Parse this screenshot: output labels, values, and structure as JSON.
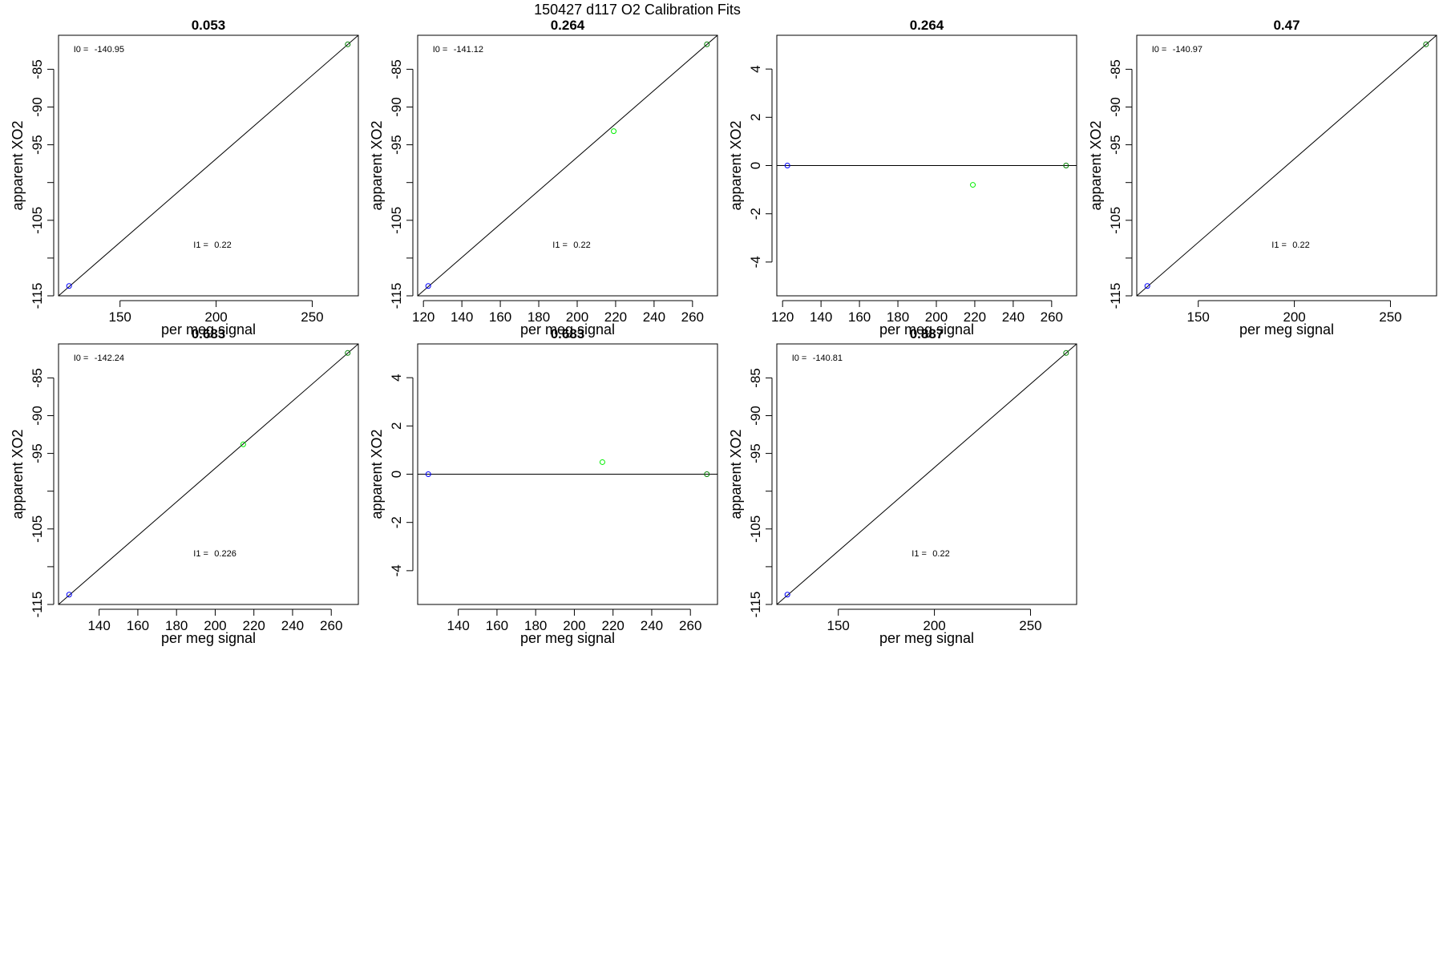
{
  "figure": {
    "title": "150427   d117   O2 Calibration Fits"
  },
  "chart_data": [
    {
      "type": "scatter",
      "title": "0.053",
      "xlabel": "per meg signal",
      "ylabel": "apparent XO2",
      "xlim": [
        118,
        274
      ],
      "ylim": [
        -115,
        -80.5
      ],
      "xticks": [
        150,
        200,
        250
      ],
      "yticks": [
        -115,
        -110,
        -105,
        -100,
        -95,
        -90,
        -85
      ],
      "ytick_labels": [
        "-115",
        "",
        "-105",
        "",
        "-95",
        "-90",
        "-85"
      ],
      "annotations": [
        {
          "label": "I0 =",
          "value": "-140.95",
          "ax": 0.05,
          "ay": 0.935
        },
        {
          "label": "I1 =",
          "value": "0.22",
          "ax": 0.45,
          "ay": 0.185
        }
      ],
      "line": {
        "x": [
          118,
          274
        ],
        "y": [
          -115,
          -80.5
        ]
      },
      "points": [
        {
          "x": 123.5,
          "y": -113.7,
          "color": "#0000ff"
        },
        {
          "x": 268.5,
          "y": -81.7,
          "color": "#008000"
        }
      ],
      "colors": {
        "low": "#0000ff",
        "mid": "#00ee00",
        "high": "#008000"
      }
    },
    {
      "type": "scatter",
      "title": "0.264",
      "xlabel": "per meg signal",
      "ylabel": "apparent XO2",
      "xlim": [
        117,
        273
      ],
      "ylim": [
        -115,
        -80.5
      ],
      "xticks": [
        120,
        140,
        160,
        180,
        200,
        220,
        240,
        260
      ],
      "yticks": [
        -115,
        -110,
        -105,
        -100,
        -95,
        -90,
        -85
      ],
      "ytick_labels": [
        "-115",
        "",
        "-105",
        "",
        "-95",
        "-90",
        "-85"
      ],
      "annotations": [
        {
          "label": "I0 =",
          "value": "-141.12",
          "ax": 0.05,
          "ay": 0.935
        },
        {
          "label": "I1 =",
          "value": "0.22",
          "ax": 0.45,
          "ay": 0.185
        }
      ],
      "line": {
        "x": [
          117,
          273
        ],
        "y": [
          -115,
          -80.5
        ]
      },
      "points": [
        {
          "x": 122.5,
          "y": -113.7,
          "color": "#0000ff"
        },
        {
          "x": 219,
          "y": -93.2,
          "color": "#00ee00"
        },
        {
          "x": 267.5,
          "y": -81.7,
          "color": "#008000"
        }
      ]
    },
    {
      "type": "scatter",
      "title": "0.264",
      "xlabel": "per meg signal",
      "ylabel": "apparent XO2",
      "xlim": [
        117,
        273
      ],
      "ylim": [
        -5.4,
        5.4
      ],
      "xticks": [
        120,
        140,
        160,
        180,
        200,
        220,
        240,
        260
      ],
      "yticks": [
        -4,
        -2,
        0,
        2,
        4
      ],
      "ytick_labels": [
        "-4",
        "-2",
        "0",
        "2",
        "4"
      ],
      "annotations": [],
      "line": {
        "x": [
          117,
          273
        ],
        "y": [
          0,
          0
        ]
      },
      "points": [
        {
          "x": 122.5,
          "y": 0,
          "color": "#0000ff"
        },
        {
          "x": 219,
          "y": -0.8,
          "color": "#00ee00"
        },
        {
          "x": 267.5,
          "y": 0,
          "color": "#008000"
        }
      ]
    },
    {
      "type": "scatter",
      "title": "0.47",
      "xlabel": "per meg signal",
      "ylabel": "apparent XO2",
      "xlim": [
        118,
        274
      ],
      "ylim": [
        -115,
        -80.5
      ],
      "xticks": [
        150,
        200,
        250
      ],
      "yticks": [
        -115,
        -110,
        -105,
        -100,
        -95,
        -90,
        -85
      ],
      "ytick_labels": [
        "-115",
        "",
        "-105",
        "",
        "-95",
        "-90",
        "-85"
      ],
      "annotations": [
        {
          "label": "I0 =",
          "value": "-140.97",
          "ax": 0.05,
          "ay": 0.935
        },
        {
          "label": "I1 =",
          "value": "0.22",
          "ax": 0.45,
          "ay": 0.185
        }
      ],
      "line": {
        "x": [
          118,
          274
        ],
        "y": [
          -115,
          -80.5
        ]
      },
      "points": [
        {
          "x": 123.5,
          "y": -113.7,
          "color": "#0000ff"
        },
        {
          "x": 268.5,
          "y": -81.7,
          "color": "#008000"
        }
      ]
    },
    {
      "type": "scatter",
      "title": "0.683",
      "xlabel": "per meg signal",
      "ylabel": "apparent XO2",
      "xlim": [
        119,
        274
      ],
      "ylim": [
        -115,
        -80.5
      ],
      "xticks": [
        140,
        160,
        180,
        200,
        220,
        240,
        260
      ],
      "yticks": [
        -115,
        -110,
        -105,
        -100,
        -95,
        -90,
        -85
      ],
      "ytick_labels": [
        "-115",
        "",
        "-105",
        "",
        "-95",
        "-90",
        "-85"
      ],
      "annotations": [
        {
          "label": "I0 =",
          "value": "-142.24",
          "ax": 0.05,
          "ay": 0.935
        },
        {
          "label": "I1 =",
          "value": "0.226",
          "ax": 0.45,
          "ay": 0.185
        }
      ],
      "line": {
        "x": [
          119,
          274
        ],
        "y": [
          -115,
          -80.5
        ]
      },
      "points": [
        {
          "x": 124.5,
          "y": -113.7,
          "color": "#0000ff"
        },
        {
          "x": 214.5,
          "y": -93.8,
          "color": "#00ee00"
        },
        {
          "x": 268.5,
          "y": -81.7,
          "color": "#008000"
        }
      ]
    },
    {
      "type": "scatter",
      "title": "0.683",
      "xlabel": "per meg signal",
      "ylabel": "apparent XO2",
      "xlim": [
        119,
        274
      ],
      "ylim": [
        -5.4,
        5.4
      ],
      "xticks": [
        140,
        160,
        180,
        200,
        220,
        240,
        260
      ],
      "yticks": [
        -4,
        -2,
        0,
        2,
        4
      ],
      "ytick_labels": [
        "-4",
        "-2",
        "0",
        "2",
        "4"
      ],
      "annotations": [],
      "line": {
        "x": [
          119,
          274
        ],
        "y": [
          0,
          0
        ]
      },
      "points": [
        {
          "x": 124.5,
          "y": 0,
          "color": "#0000ff"
        },
        {
          "x": 214.5,
          "y": 0.5,
          "color": "#00ee00"
        },
        {
          "x": 268.5,
          "y": 0,
          "color": "#008000"
        }
      ]
    },
    {
      "type": "scatter",
      "title": "0.887",
      "xlabel": "per meg signal",
      "ylabel": "apparent XO2",
      "xlim": [
        118,
        274
      ],
      "ylim": [
        -115,
        -80.5
      ],
      "xticks": [
        150,
        200,
        250
      ],
      "yticks": [
        -115,
        -110,
        -105,
        -100,
        -95,
        -90,
        -85
      ],
      "ytick_labels": [
        "-115",
        "",
        "-105",
        "",
        "-95",
        "-90",
        "-85"
      ],
      "annotations": [
        {
          "label": "I0 =",
          "value": "-140.81",
          "ax": 0.05,
          "ay": 0.935
        },
        {
          "label": "I1 =",
          "value": "0.22",
          "ax": 0.45,
          "ay": 0.185
        }
      ],
      "line": {
        "x": [
          118,
          274
        ],
        "y": [
          -115,
          -80.5
        ]
      },
      "points": [
        {
          "x": 123.5,
          "y": -113.7,
          "color": "#0000ff"
        },
        {
          "x": 268.5,
          "y": -81.7,
          "color": "#008000"
        }
      ]
    }
  ]
}
